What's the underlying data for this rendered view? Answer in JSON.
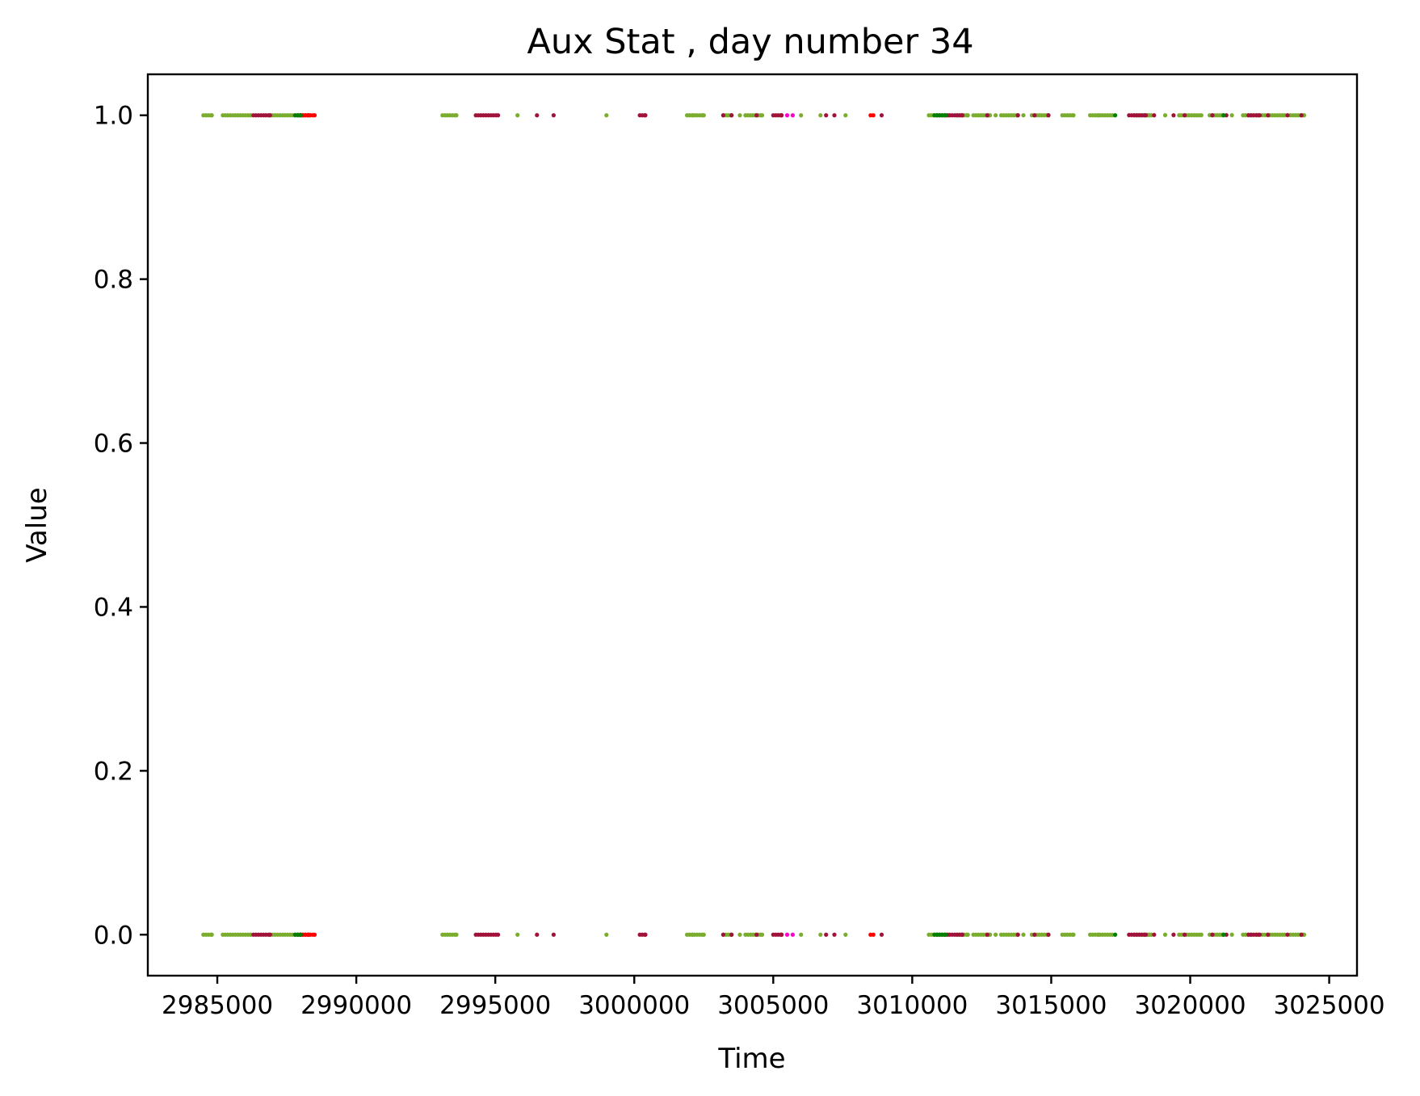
{
  "chart_data": {
    "type": "scatter",
    "title": "Aux Stat , day number 34",
    "xlabel": "Time",
    "ylabel": "Value",
    "xlim": [
      2982500,
      3026000
    ],
    "ylim": [
      -0.05,
      1.05
    ],
    "xticks": [
      2985000,
      2990000,
      2995000,
      3000000,
      3005000,
      3010000,
      3015000,
      3020000,
      3025000
    ],
    "xtick_labels": [
      "2985000",
      "2990000",
      "2995000",
      "3000000",
      "3005000",
      "3010000",
      "3015000",
      "3020000",
      "3025000"
    ],
    "yticks": [
      0.0,
      0.2,
      0.4,
      0.6,
      0.8,
      1.0
    ],
    "ytick_labels": [
      "0.0",
      "0.2",
      "0.4",
      "0.6",
      "0.8",
      "1.0"
    ],
    "grid": false,
    "colors": {
      "olive": "#7aac2e",
      "crimson": "#a1123a",
      "green": "#008000",
      "red": "#ff0000",
      "magenta": "#ff00cc"
    },
    "y_levels": [
      0,
      1
    ],
    "series": [
      {
        "color_key": "olive",
        "ranges": [
          [
            2984500,
            2984800
          ],
          [
            2985200,
            2986200
          ],
          [
            2986900,
            2987700
          ],
          [
            2993100,
            2993600
          ],
          [
            3001900,
            3002500
          ],
          [
            3003200,
            3003500
          ],
          [
            3004000,
            3004600
          ],
          [
            3010600,
            3010900
          ],
          [
            3011600,
            3012000
          ],
          [
            3012200,
            3012800
          ],
          [
            3013200,
            3013800
          ],
          [
            3014300,
            3014900
          ],
          [
            3015400,
            3015800
          ],
          [
            3016400,
            3017200
          ],
          [
            3018000,
            3018600
          ],
          [
            3019600,
            3020400
          ],
          [
            3020700,
            3021200
          ],
          [
            3021900,
            3022200
          ],
          [
            3022600,
            3023400
          ],
          [
            3023700,
            3024100
          ]
        ],
        "points": [
          2995800,
          2999000,
          3002100,
          3003800,
          3006000,
          3006700,
          3007600,
          3011300,
          3013000,
          3014000,
          3016700,
          3018500,
          3019100,
          3021500,
          3022400,
          3023600
        ]
      },
      {
        "color_key": "crimson",
        "ranges": [
          [
            2986300,
            2986900
          ],
          [
            2987800,
            2988300
          ],
          [
            2994300,
            2995100
          ],
          [
            3000200,
            3000400
          ],
          [
            3005000,
            3005300
          ],
          [
            3010900,
            3011800
          ],
          [
            3017800,
            3018400
          ],
          [
            3022100,
            3022500
          ]
        ],
        "points": [
          2996500,
          2997100,
          3003200,
          3003500,
          3004400,
          3005300,
          3006900,
          3007200,
          3008900,
          3012700,
          3013800,
          3014400,
          3014900,
          3018700,
          3019400,
          3019800,
          3020800,
          3021300,
          3022800,
          3023500,
          3024000
        ]
      },
      {
        "color_key": "red",
        "ranges": [
          [
            2987900,
            2988500
          ]
        ],
        "points": [
          3008500,
          3008600
        ]
      },
      {
        "color_key": "green",
        "ranges": [
          [
            2987800,
            2988000
          ],
          [
            3010800,
            3011200
          ]
        ],
        "points": [
          3021200,
          3017300
        ]
      },
      {
        "color_key": "magenta",
        "ranges": [],
        "points": [
          3005500,
          3005700
        ]
      }
    ]
  }
}
